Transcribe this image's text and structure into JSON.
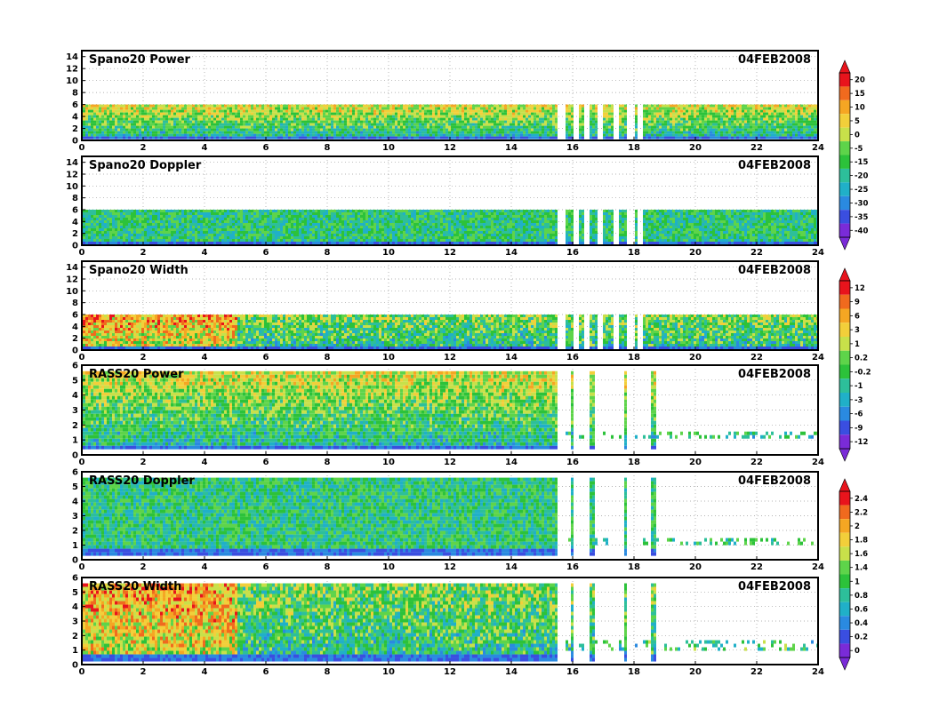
{
  "figure_date": "04FEB2008",
  "chart_data": [
    {
      "type": "heatmap",
      "title": "Spano20 Power",
      "date": "04FEB2008",
      "x_ticks": [
        "0",
        "2",
        "4",
        "6",
        "8",
        "10",
        "12",
        "14",
        "16",
        "18",
        "20",
        "22",
        "24"
      ],
      "y_ticks": [
        "0",
        "2",
        "4",
        "6",
        "8",
        "10",
        "12",
        "14"
      ],
      "xlim": [
        0,
        24
      ],
      "ylim": [
        0,
        15
      ],
      "grid": true,
      "data_height_range": [
        0.3,
        6.0
      ],
      "colormap": "power"
    },
    {
      "type": "heatmap",
      "title": "Spano20 Doppler",
      "date": "04FEB2008",
      "x_ticks": [
        "0",
        "2",
        "4",
        "6",
        "8",
        "10",
        "12",
        "14",
        "16",
        "18",
        "20",
        "22",
        "24"
      ],
      "y_ticks": [
        "0",
        "2",
        "4",
        "6",
        "8",
        "10",
        "12",
        "14"
      ],
      "xlim": [
        0,
        24
      ],
      "ylim": [
        0,
        15
      ],
      "grid": true,
      "data_height_range": [
        0.3,
        6.0
      ],
      "colormap": "power"
    },
    {
      "type": "heatmap",
      "title": "Spano20 Width",
      "date": "04FEB2008",
      "x_ticks": [
        "0",
        "2",
        "4",
        "6",
        "8",
        "10",
        "12",
        "14",
        "16",
        "18",
        "20",
        "22",
        "24"
      ],
      "y_ticks": [
        "0",
        "2",
        "4",
        "6",
        "8",
        "10",
        "12",
        "14"
      ],
      "xlim": [
        0,
        24
      ],
      "ylim": [
        0,
        15
      ],
      "grid": true,
      "data_height_range": [
        0.3,
        6.0
      ],
      "colormap": "width"
    },
    {
      "type": "heatmap",
      "title": "RASS20 Power",
      "date": "04FEB2008",
      "x_ticks": [
        "0",
        "2",
        "4",
        "6",
        "8",
        "10",
        "12",
        "14",
        "16",
        "18",
        "20",
        "22",
        "24"
      ],
      "y_ticks": [
        "0",
        "1",
        "2",
        "3",
        "4",
        "5",
        "6"
      ],
      "xlim": [
        0,
        24
      ],
      "ylim": [
        0,
        6
      ],
      "grid": true,
      "data_height_range": [
        0.4,
        5.6
      ],
      "colormap": "width"
    },
    {
      "type": "heatmap",
      "title": "RASS20 Doppler",
      "date": "04FEB2008",
      "x_ticks": [
        "0",
        "2",
        "4",
        "6",
        "8",
        "10",
        "12",
        "14",
        "16",
        "18",
        "20",
        "22",
        "24"
      ],
      "y_ticks": [
        "0",
        "1",
        "2",
        "3",
        "4",
        "5",
        "6"
      ],
      "xlim": [
        0,
        24
      ],
      "ylim": [
        0,
        6
      ],
      "grid": true,
      "data_height_range": [
        0.4,
        5.6
      ],
      "colormap": "rass"
    },
    {
      "type": "heatmap",
      "title": "RASS20 Width",
      "date": "04FEB2008",
      "x_ticks": [
        "0",
        "2",
        "4",
        "6",
        "8",
        "10",
        "12",
        "14",
        "16",
        "18",
        "20",
        "22",
        "24"
      ],
      "y_ticks": [
        "0",
        "1",
        "2",
        "3",
        "4",
        "5",
        "6"
      ],
      "xlim": [
        0,
        24
      ],
      "ylim": [
        0,
        6
      ],
      "grid": true,
      "data_height_range": [
        0.4,
        5.6
      ],
      "colormap": "rass"
    }
  ],
  "colorbars": [
    {
      "name": "power",
      "labels": [
        "20",
        "15",
        "10",
        "5",
        "0",
        "-5",
        "-15",
        "-20",
        "-25",
        "-30",
        "-35",
        "-40"
      ],
      "colors": [
        "#e8141c",
        "#f06a1e",
        "#f5a623",
        "#f2cf3a",
        "#c8e04a",
        "#5ed44a",
        "#2cc23a",
        "#2dbf9a",
        "#20b0c8",
        "#2a8ae0",
        "#3a4ee0",
        "#7a2bd8"
      ]
    },
    {
      "name": "width",
      "labels": [
        "12",
        "9",
        "6",
        "3",
        "1",
        "0.2",
        "-0.2",
        "-1",
        "-3",
        "-6",
        "-9",
        "-12"
      ],
      "colors": [
        "#e8141c",
        "#f06a1e",
        "#f5a623",
        "#f2cf3a",
        "#c8e04a",
        "#5ed44a",
        "#2cc23a",
        "#2dbf9a",
        "#20b0c8",
        "#2a8ae0",
        "#3a4ee0",
        "#7a2bd8"
      ]
    },
    {
      "name": "rass",
      "labels": [
        "2.4",
        "2.2",
        "2",
        "1.8",
        "1.6",
        "1.4",
        "1",
        "0.8",
        "0.6",
        "0.4",
        "0.2",
        "0"
      ],
      "colors": [
        "#e8141c",
        "#f06a1e",
        "#f5a623",
        "#f2cf3a",
        "#c8e04a",
        "#5ed44a",
        "#2cc23a",
        "#2dbf9a",
        "#20b0c8",
        "#2a8ae0",
        "#3a4ee0",
        "#7a2bd8"
      ]
    }
  ]
}
